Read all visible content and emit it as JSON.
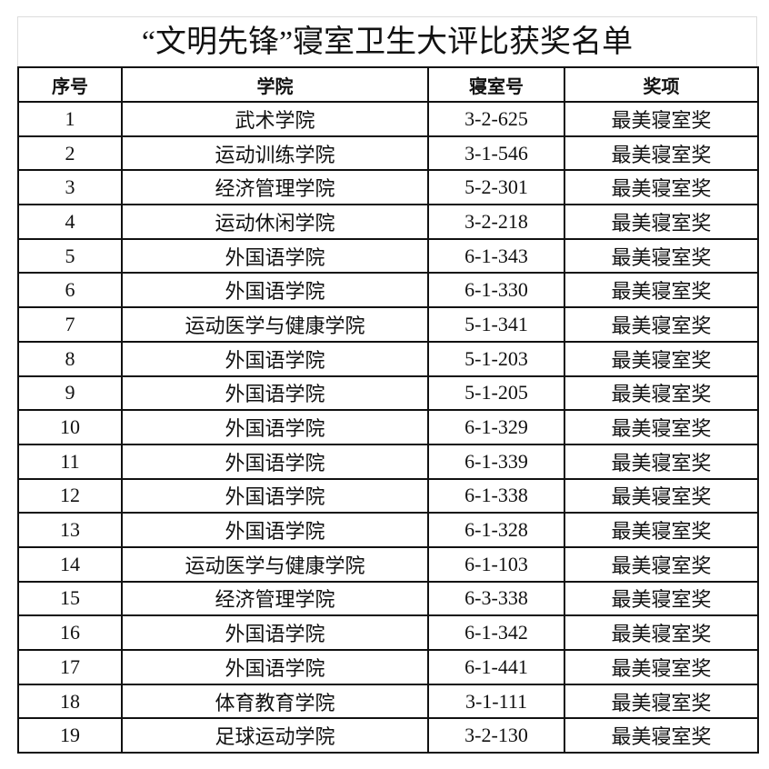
{
  "title": "“文明先锋”寝室卫生大评比获奖名单",
  "headers": [
    "序号",
    "学院",
    "寝室号",
    "奖项"
  ],
  "rows": [
    [
      "1",
      "武术学院",
      "3-2-625",
      "最美寝室奖"
    ],
    [
      "2",
      "运动训练学院",
      "3-1-546",
      "最美寝室奖"
    ],
    [
      "3",
      "经济管理学院",
      "5-2-301",
      "最美寝室奖"
    ],
    [
      "4",
      "运动休闲学院",
      "3-2-218",
      "最美寝室奖"
    ],
    [
      "5",
      "外国语学院",
      "6-1-343",
      "最美寝室奖"
    ],
    [
      "6",
      "外国语学院",
      "6-1-330",
      "最美寝室奖"
    ],
    [
      "7",
      "运动医学与健康学院",
      "5-1-341",
      "最美寝室奖"
    ],
    [
      "8",
      "外国语学院",
      "5-1-203",
      "最美寝室奖"
    ],
    [
      "9",
      "外国语学院",
      "5-1-205",
      "最美寝室奖"
    ],
    [
      "10",
      "外国语学院",
      "6-1-329",
      "最美寝室奖"
    ],
    [
      "11",
      "外国语学院",
      "6-1-339",
      "最美寝室奖"
    ],
    [
      "12",
      "外国语学院",
      "6-1-338",
      "最美寝室奖"
    ],
    [
      "13",
      "外国语学院",
      "6-1-328",
      "最美寝室奖"
    ],
    [
      "14",
      "运动医学与健康学院",
      "6-1-103",
      "最美寝室奖"
    ],
    [
      "15",
      "经济管理学院",
      "6-3-338",
      "最美寝室奖"
    ],
    [
      "16",
      "外国语学院",
      "6-1-342",
      "最美寝室奖"
    ],
    [
      "17",
      "外国语学院",
      "6-1-441",
      "最美寝室奖"
    ],
    [
      "18",
      "体育教育学院",
      "3-1-111",
      "最美寝室奖"
    ],
    [
      "19",
      "足球运动学院",
      "3-2-130",
      "最美寝室奖"
    ]
  ]
}
